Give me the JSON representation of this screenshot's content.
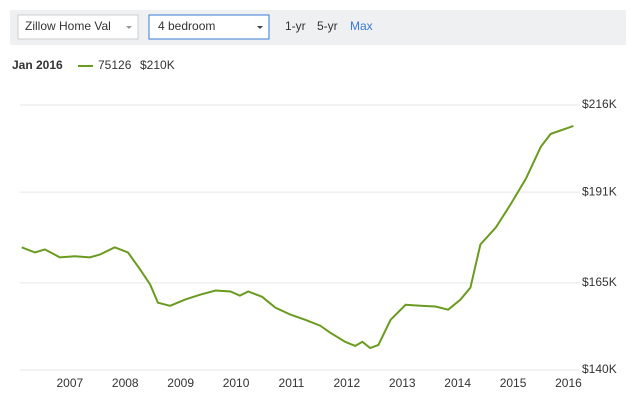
{
  "controls": {
    "region_select": "Zillow Home Val",
    "bedroom_select": "4 bedroom",
    "ranges": [
      "1-yr",
      "5-yr",
      "Max"
    ]
  },
  "chart_data": {
    "type": "line",
    "legend_date": "Jan 2016",
    "x": [
      2006.13,
      2006.37,
      2006.55,
      2006.82,
      2007.09,
      2007.36,
      2007.54,
      2007.81,
      2008.05,
      2008.27,
      2008.45,
      2008.59,
      2008.81,
      2009.08,
      2009.35,
      2009.63,
      2009.9,
      2010.07,
      2010.22,
      2010.47,
      2010.71,
      2010.98,
      2011.25,
      2011.52,
      2011.7,
      2011.97,
      2012.15,
      2012.28,
      2012.42,
      2012.57,
      2012.79,
      2013.06,
      2013.33,
      2013.6,
      2013.83,
      2014.05,
      2014.23,
      2014.41,
      2014.69,
      2014.96,
      2015.23,
      2015.5,
      2015.68,
      2015.95,
      2016.09
    ],
    "series": [
      {
        "name": "75126",
        "color": "#6a9a1f",
        "legend_value": 210,
        "legend_value_label": "$210K",
        "values": [
          175.2,
          173.7,
          174.6,
          172.3,
          172.6,
          172.3,
          173.1,
          175.2,
          173.7,
          168.8,
          164.5,
          159.3,
          158.4,
          160.2,
          161.6,
          162.8,
          162.5,
          161.3,
          162.5,
          161.0,
          157.9,
          155.9,
          154.4,
          152.7,
          150.7,
          148.1,
          146.9,
          148.1,
          146.3,
          147.2,
          154.4,
          158.7,
          158.4,
          158.2,
          157.3,
          160.2,
          163.6,
          176.0,
          180.9,
          187.6,
          194.8,
          204.0,
          207.7,
          209.2,
          210.0
        ]
      }
    ],
    "xlim": [
      2006.1,
      2016.1
    ],
    "xticks": [
      2007,
      2008,
      2009,
      2010,
      2011,
      2012,
      2013,
      2014,
      2015,
      2016
    ],
    "ylim": [
      140,
      216
    ],
    "yticks": [
      {
        "value": 140,
        "label": "$140K"
      },
      {
        "value": 165,
        "label": "$165K"
      },
      {
        "value": 191,
        "label": "$191K"
      },
      {
        "value": 216,
        "label": "$216K"
      }
    ],
    "grid": true
  }
}
